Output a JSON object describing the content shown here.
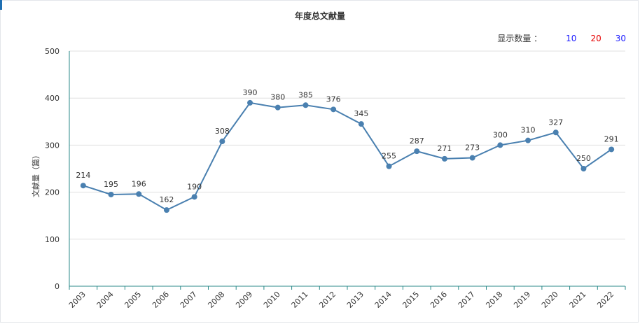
{
  "title": "年度总文献量",
  "count_selector": {
    "label": "显示数量 ：",
    "options": [
      {
        "text": "10",
        "color": "#1a1aff"
      },
      {
        "text": "20",
        "color": "#e60000"
      },
      {
        "text": "30",
        "color": "#1a1aff"
      }
    ]
  },
  "chart_data": {
    "type": "line",
    "title": "年度总文献量",
    "ylabel": "文献量（篇）",
    "xlabel": "",
    "ylim": [
      0,
      500
    ],
    "yticks": [
      0,
      100,
      200,
      300,
      400,
      500
    ],
    "line_color": "#4a80b0",
    "grid": "horizontal",
    "categories": [
      "2003",
      "2004",
      "2005",
      "2006",
      "2007",
      "2008",
      "2009",
      "2010",
      "2011",
      "2012",
      "2013",
      "2014",
      "2015",
      "2016",
      "2017",
      "2018",
      "2019",
      "2020",
      "2021",
      "2022"
    ],
    "values": [
      214,
      195,
      196,
      162,
      190,
      308,
      390,
      380,
      385,
      376,
      345,
      255,
      287,
      271,
      273,
      300,
      310,
      327,
      250,
      291
    ]
  }
}
